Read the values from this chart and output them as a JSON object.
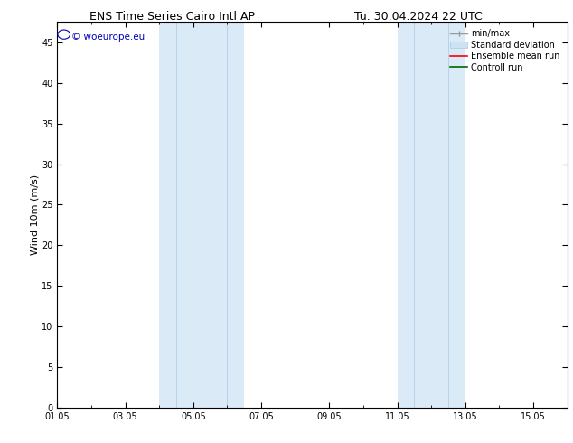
{
  "title_left": "ENS Time Series Cairo Intl AP",
  "title_right": "Tu. 30.04.2024 22 UTC",
  "ylabel": "Wind 10m (m/s)",
  "ylim": [
    0,
    47.5
  ],
  "yticks": [
    0,
    5,
    10,
    15,
    20,
    25,
    30,
    35,
    40,
    45
  ],
  "xtick_labels": [
    "01.05",
    "03.05",
    "05.05",
    "07.05",
    "09.05",
    "11.05",
    "13.05",
    "15.05"
  ],
  "xtick_positions": [
    0,
    2,
    4,
    6,
    8,
    10,
    12,
    14
  ],
  "xlim": [
    0,
    15
  ],
  "shade_bands": [
    {
      "start": 3.0,
      "end": 5.5
    },
    {
      "start": 10.0,
      "end": 12.0
    }
  ],
  "shade_color": "#daeaf7",
  "inner_line_color": "#b0cfe8",
  "inner_lines_band1": [
    3.5,
    5.0
  ],
  "inner_lines_band2": [
    10.5,
    11.5
  ],
  "watermark_text": "© woeurope.eu",
  "watermark_color": "#0000bb",
  "watermark_fontsize": 7.5,
  "circle_color": "#0000bb",
  "bg_color": "#ffffff",
  "title_fontsize": 9,
  "tick_fontsize": 7,
  "ylabel_fontsize": 8,
  "legend_fontsize": 7
}
